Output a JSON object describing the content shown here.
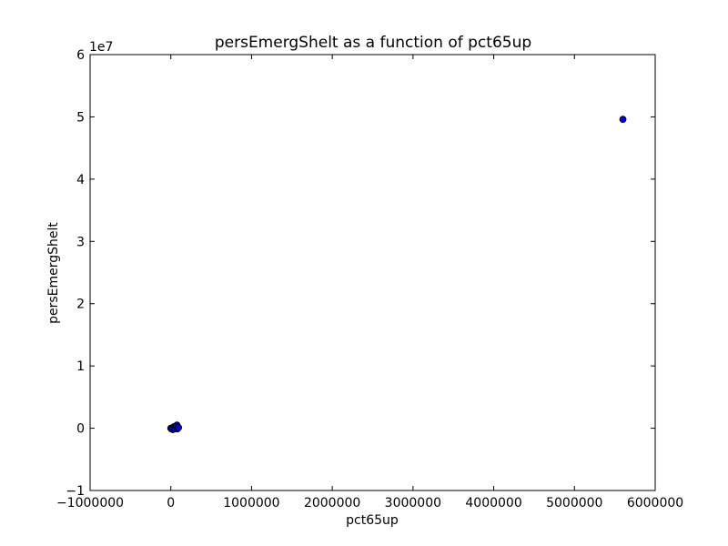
{
  "chart_data": {
    "type": "scatter",
    "title": "persEmergShelt as a function of pct65up",
    "xlabel": "pct65up",
    "ylabel": "persEmergShelt",
    "y_offset_label": "1e7",
    "xlim": [
      -1000000,
      6000000
    ],
    "ylim": [
      -1,
      6
    ],
    "y_scale_factor": 10000000,
    "xticks": [
      -1000000,
      0,
      1000000,
      2000000,
      3000000,
      4000000,
      5000000,
      6000000
    ],
    "xtick_labels": [
      "−1000000",
      "0",
      "1000000",
      "2000000",
      "3000000",
      "4000000",
      "5000000",
      "6000000"
    ],
    "yticks": [
      -1,
      0,
      1,
      2,
      3,
      4,
      5,
      6
    ],
    "ytick_labels": [
      "−1",
      "0",
      "1",
      "2",
      "3",
      "4",
      "5",
      "6"
    ],
    "grid": false,
    "marker_color": "#0000cc",
    "points": [
      {
        "x": 5600000,
        "y": 4.96
      },
      {
        "x": 35000,
        "y": 0.02
      },
      {
        "x": 52000,
        "y": 0.03
      },
      {
        "x": 64000,
        "y": 0.01
      },
      {
        "x": 76000,
        "y": 0.05
      },
      {
        "x": 88000,
        "y": 0.02
      },
      {
        "x": 0,
        "y": 0.0
      },
      {
        "x": 5000,
        "y": -0.01
      },
      {
        "x": 15000,
        "y": 0.0
      },
      {
        "x": 25000,
        "y": -0.02
      },
      {
        "x": 40000,
        "y": 0.0
      },
      {
        "x": 58000,
        "y": -0.01
      },
      {
        "x": 70000,
        "y": 0.03
      },
      {
        "x": 82000,
        "y": -0.01
      },
      {
        "x": 95000,
        "y": 0.01
      }
    ]
  }
}
